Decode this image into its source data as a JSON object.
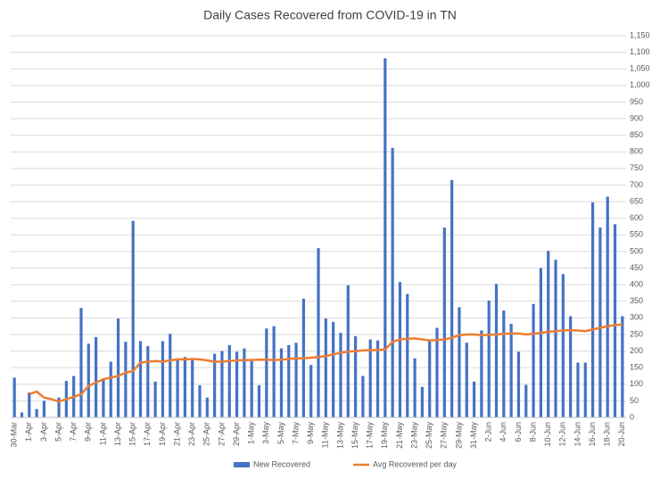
{
  "chart_data": {
    "type": "bar",
    "title": "Daily Cases Recovered from COVID-19 in TN",
    "categories": [
      "30-Mar",
      null,
      "1-Apr",
      null,
      "3-Apr",
      null,
      "5-Apr",
      null,
      "7-Apr",
      null,
      "9-Apr",
      null,
      "11-Apr",
      null,
      "13-Apr",
      null,
      "15-Apr",
      null,
      "17-Apr",
      null,
      "19-Apr",
      null,
      "21-Apr",
      null,
      "23-Apr",
      null,
      "25-Apr",
      null,
      "27-Apr",
      null,
      "29-Apr",
      null,
      "1-May",
      null,
      "3-May",
      null,
      "5-May",
      null,
      "7-May",
      null,
      "9-May",
      null,
      "11-May",
      null,
      "13-May",
      null,
      "15-May",
      null,
      "17-May",
      null,
      "19-May",
      null,
      "21-May",
      null,
      "23-May",
      null,
      "25-May",
      null,
      "27-May",
      null,
      "29-May",
      null,
      "31-May",
      null,
      "2-Jun",
      null,
      "4-Jun",
      null,
      "6-Jun",
      null,
      "8-Jun",
      null,
      "10-Jun",
      null,
      "12-Jun",
      null,
      "14-Jun",
      null,
      "16-Jun",
      null,
      "18-Jun",
      null,
      "20-Jun"
    ],
    "series": [
      {
        "name": "New Recovered",
        "type": "bar",
        "color": "#4472c4",
        "values": [
          120,
          15,
          75,
          25,
          50,
          0,
          60,
          110,
          125,
          330,
          222,
          242,
          115,
          168,
          298,
          228,
          592,
          230,
          215,
          108,
          230,
          252,
          178,
          182,
          175,
          97,
          60,
          192,
          200,
          218,
          198,
          208,
          170,
          97,
          268,
          275,
          208,
          218,
          225,
          358,
          158,
          510,
          298,
          288,
          255,
          398,
          245,
          125,
          235,
          232,
          1082,
          812,
          408,
          372,
          178,
          92,
          232,
          270,
          572,
          715,
          332,
          225,
          108,
          262,
          352,
          402,
          322,
          282,
          198,
          98,
          342,
          450,
          502,
          475,
          432,
          305,
          165,
          165,
          648,
          572,
          665,
          582,
          305
        ]
      },
      {
        "name": "Avg Recovered per day",
        "type": "line",
        "color": "#ed7d31",
        "values": [
          null,
          null,
          70,
          78,
          60,
          55,
          48,
          55,
          62,
          70,
          95,
          105,
          115,
          120,
          125,
          135,
          140,
          165,
          168,
          170,
          168,
          172,
          175,
          175,
          176,
          175,
          172,
          168,
          168,
          170,
          172,
          173,
          173,
          174,
          174,
          173,
          174,
          176,
          178,
          178,
          180,
          182,
          185,
          190,
          195,
          198,
          200,
          202,
          203,
          203,
          205,
          228,
          235,
          237,
          238,
          235,
          232,
          233,
          235,
          240,
          248,
          250,
          250,
          248,
          249,
          250,
          252,
          253,
          253,
          250,
          252,
          255,
          258,
          260,
          262,
          263,
          262,
          260,
          265,
          270,
          275,
          278,
          280
        ]
      }
    ],
    "ylim": [
      0,
      1150
    ],
    "yticks": [
      0,
      50,
      100,
      150,
      200,
      250,
      300,
      350,
      400,
      450,
      500,
      550,
      600,
      650,
      700,
      750,
      800,
      850,
      900,
      950,
      {
        "value": 1000,
        "label": "1,000"
      },
      {
        "value": 1050,
        "label": "1,050"
      },
      {
        "value": 1100,
        "label": "1,100"
      },
      {
        "value": 1150,
        "label": "1,150"
      }
    ],
    "grid": true,
    "legend": "bottom"
  }
}
